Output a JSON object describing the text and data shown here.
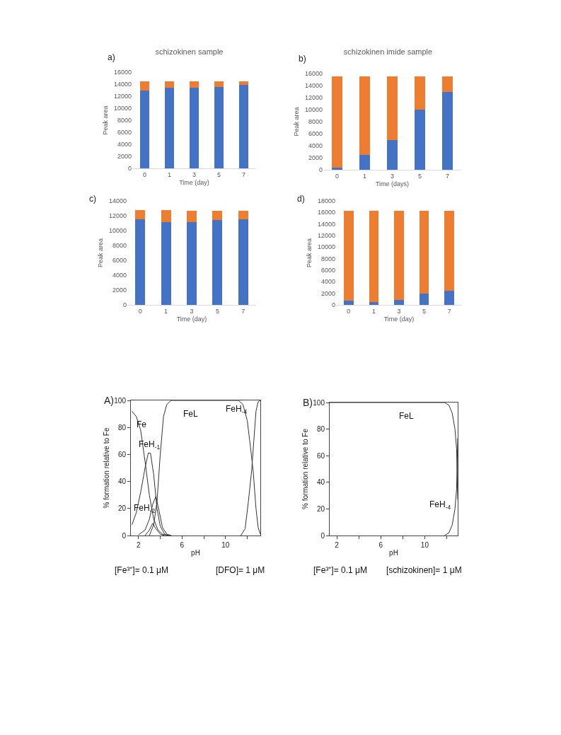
{
  "chart_data": [
    {
      "type": "bar",
      "title": "schizokinen sample",
      "xlabel": "Time (day)",
      "ylabel": "Peak area",
      "annotations": [
        "a)"
      ],
      "categories": [
        "0",
        "1",
        "3",
        "5",
        "7"
      ],
      "stacked": true,
      "ylim": [
        0,
        16000
      ],
      "yticks": [
        0,
        2000,
        4000,
        6000,
        8000,
        10000,
        12000,
        14000,
        16000
      ],
      "series": [
        {
          "color": "#4472c4",
          "values": [
            13000,
            13400,
            13400,
            13500,
            13900
          ]
        },
        {
          "color": "#ed7d31",
          "values": [
            1500,
            1100,
            1100,
            1000,
            600
          ]
        }
      ]
    },
    {
      "type": "bar",
      "title": "schizokinen imide sample",
      "xlabel": "Time (days)",
      "ylabel": "Peak area",
      "annotations": [
        "b)"
      ],
      "categories": [
        "0",
        "1",
        "3",
        "5",
        "7"
      ],
      "stacked": true,
      "ylim": [
        0,
        16000
      ],
      "yticks": [
        0,
        2000,
        4000,
        6000,
        8000,
        10000,
        12000,
        14000,
        16000
      ],
      "series": [
        {
          "color": "#4472c4",
          "values": [
            300,
            2500,
            5000,
            10000,
            12900
          ]
        },
        {
          "color": "#ed7d31",
          "values": [
            15200,
            13000,
            10500,
            5500,
            2600
          ]
        }
      ]
    },
    {
      "type": "bar",
      "xlabel": "Time (day)",
      "ylabel": "Peak area",
      "annotations": [
        "c)"
      ],
      "categories": [
        "0",
        "1",
        "3",
        "5",
        "7"
      ],
      "stacked": true,
      "ylim": [
        0,
        14000
      ],
      "yticks": [
        0,
        2000,
        4000,
        6000,
        8000,
        10000,
        12000,
        14000
      ],
      "series": [
        {
          "color": "#4472c4",
          "values": [
            11500,
            11100,
            11100,
            11400,
            11500
          ]
        },
        {
          "color": "#ed7d31",
          "values": [
            1300,
            1700,
            1600,
            1300,
            1200
          ]
        }
      ]
    },
    {
      "type": "bar",
      "xlabel": "Time (day)",
      "ylabel": "Peak area",
      "annotations": [
        "d)"
      ],
      "categories": [
        "0",
        "1",
        "3",
        "5",
        "7"
      ],
      "stacked": true,
      "ylim": [
        0,
        18000
      ],
      "yticks": [
        0,
        2000,
        4000,
        6000,
        8000,
        10000,
        12000,
        14000,
        16000,
        18000
      ],
      "series": [
        {
          "color": "#4472c4",
          "values": [
            700,
            500,
            800,
            1900,
            2500
          ]
        },
        {
          "color": "#ed7d31",
          "values": [
            15600,
            15800,
            15500,
            14400,
            13800
          ]
        }
      ]
    },
    {
      "type": "line",
      "xlabel": "pH",
      "ylabel": "% formation relative to Fe",
      "line_style": "solid",
      "annotations": [
        "A)",
        "[Fe³⁺]= 0.1 μM",
        "[DFO]= 1 μM",
        "FeL",
        "Fe",
        "FeH$_{-1}$",
        "FeH$_{-2}$",
        "FeH$_{-4}$"
      ],
      "xlim": [
        1.3,
        13.2
      ],
      "xticks": [
        2,
        {
          "value": 4,
          "label": null
        },
        6,
        {
          "value": 8,
          "label": null
        },
        10,
        {
          "value": 12,
          "label": null
        }
      ],
      "ylim": [
        0,
        100
      ],
      "yticks": [
        0,
        20,
        40,
        60,
        80,
        100
      ],
      "series": [
        {
          "color": "#333333",
          "x": [
            1.4,
            1.8,
            2.2,
            2.6,
            3.0,
            3.4,
            3.8,
            4.2,
            4.6,
            5.0
          ],
          "values": [
            92,
            88,
            78,
            55,
            30,
            12,
            4,
            1,
            0.3,
            0
          ]
        },
        {
          "color": "#333333",
          "x": [
            1.4,
            1.8,
            2.2,
            2.6,
            2.9,
            3.1,
            3.4,
            3.7,
            4.0,
            4.4,
            4.8
          ],
          "values": [
            8,
            17,
            32,
            50,
            61,
            61,
            45,
            20,
            7,
            1,
            0
          ]
        },
        {
          "color": "#333333",
          "x": [
            2.0,
            2.6,
            3.0,
            3.3,
            3.6,
            3.9,
            4.2,
            4.6,
            5.0
          ],
          "values": [
            0.5,
            4,
            12,
            23,
            29,
            18,
            6,
            1,
            0
          ]
        },
        {
          "color": "#333333",
          "x": [
            2.6,
            3.0,
            3.3,
            3.6,
            4.0,
            4.4
          ],
          "values": [
            0,
            4,
            9,
            5,
            1,
            0
          ]
        },
        {
          "color": "#333333",
          "x": [
            3.0,
            3.4,
            3.7,
            4.0,
            4.3,
            4.6,
            5.0,
            11.2,
            11.6,
            12.0,
            12.3,
            12.55,
            12.8,
            13.0,
            13.2
          ],
          "values": [
            0,
            8,
            25,
            60,
            88,
            97,
            100,
            100,
            97,
            85,
            65,
            47,
            20,
            6,
            1
          ]
        },
        {
          "color": "#333333",
          "x": [
            11.4,
            11.8,
            12.1,
            12.4,
            12.6,
            12.8,
            13.0,
            13.2
          ],
          "values": [
            0,
            5,
            25,
            48,
            70,
            92,
            99,
            100
          ]
        }
      ]
    },
    {
      "type": "line",
      "xlabel": "pH",
      "ylabel": "% formation relative to Fe",
      "line_style": "solid",
      "annotations": [
        "B)",
        "[Fe³⁺]= 0.1 μM",
        "[schizokinen]= 1 μM",
        "FeL",
        "FeH$_{-4}$"
      ],
      "xlim": [
        1.35,
        13.0
      ],
      "xticks": [
        2,
        {
          "value": 4,
          "label": null
        },
        6,
        {
          "value": 8,
          "label": null
        },
        10,
        {
          "value": 12,
          "label": null
        }
      ],
      "ylim": [
        0,
        100
      ],
      "yticks": [
        0,
        20,
        40,
        60,
        80,
        100
      ],
      "series": [
        {
          "color": "#333333",
          "x": [
            1.35,
            11.8,
            12.2,
            12.5,
            12.75,
            12.9,
            13.0
          ],
          "values": [
            100,
            100,
            98,
            92,
            80,
            65,
            27
          ]
        },
        {
          "color": "#333333",
          "x": [
            11.8,
            12.2,
            12.5,
            12.75,
            12.9,
            13.0
          ],
          "values": [
            0,
            2,
            8,
            20,
            35,
            73
          ]
        }
      ]
    }
  ]
}
